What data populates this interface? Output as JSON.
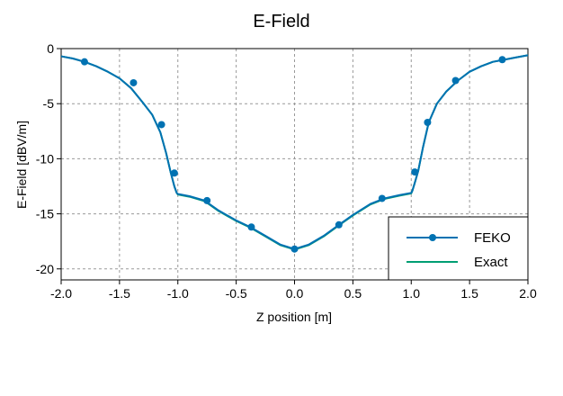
{
  "chart_data": {
    "type": "line",
    "title": "E-Field",
    "xlabel": "Z position [m]",
    "ylabel": "E-Field [dBV/m]",
    "xlim": [
      -2.0,
      2.0
    ],
    "ylim": [
      -21,
      0
    ],
    "xticks": [
      "-2.0",
      "-1.5",
      "-1.0",
      "-0.5",
      "0.0",
      "0.5",
      "1.0",
      "1.5",
      "2.0"
    ],
    "yticks": [
      "0",
      "-5",
      "-10",
      "-15",
      "-20"
    ],
    "grid": true,
    "legend_position": "bottom-right",
    "series": [
      {
        "name": "FEKO",
        "color": "#0072b2",
        "markers": true,
        "x": [
          -2.0,
          -1.9,
          -1.8,
          -1.7,
          -1.6,
          -1.5,
          -1.4,
          -1.3,
          -1.22,
          -1.15,
          -1.1,
          -1.06,
          -1.03,
          -1.01,
          -1.0,
          -0.9,
          -0.77,
          -0.65,
          -0.5,
          -0.38,
          -0.25,
          -0.12,
          0.0,
          0.12,
          0.25,
          0.38,
          0.5,
          0.65,
          0.77,
          0.9,
          1.0,
          1.01,
          1.03,
          1.06,
          1.1,
          1.15,
          1.22,
          1.3,
          1.4,
          1.5,
          1.6,
          1.7,
          1.8,
          1.9,
          2.0
        ],
        "y": [
          -0.7,
          -0.9,
          -1.2,
          -1.6,
          -2.1,
          -2.7,
          -3.6,
          -4.9,
          -6.0,
          -7.6,
          -9.5,
          -11.3,
          -12.5,
          -13.1,
          -13.2,
          -13.4,
          -13.8,
          -14.7,
          -15.6,
          -16.2,
          -17.0,
          -17.8,
          -18.2,
          -17.8,
          -17.0,
          -16.0,
          -15.1,
          -14.1,
          -13.6,
          -13.3,
          -13.1,
          -12.9,
          -12.2,
          -11.1,
          -9.0,
          -6.7,
          -5.0,
          -3.9,
          -2.9,
          -2.1,
          -1.6,
          -1.2,
          -1.0,
          -0.8,
          -0.6
        ],
        "marker_x": [
          -1.8,
          -1.38,
          -1.14,
          -1.03,
          -0.75,
          -0.37,
          0.0,
          0.38,
          0.75,
          1.03,
          1.14,
          1.38,
          1.78
        ],
        "marker_y": [
          -1.2,
          -3.1,
          -6.9,
          -11.3,
          -13.8,
          -16.2,
          -18.2,
          -16.0,
          -13.6,
          -11.2,
          -6.7,
          -2.9,
          -1.0
        ]
      },
      {
        "name": "Exact",
        "color": "#009e73",
        "markers": false,
        "x": [
          -2.0,
          -1.9,
          -1.8,
          -1.7,
          -1.6,
          -1.5,
          -1.4,
          -1.3,
          -1.22,
          -1.15,
          -1.1,
          -1.06,
          -1.03,
          -1.01,
          -1.0,
          -0.9,
          -0.77,
          -0.65,
          -0.5,
          -0.38,
          -0.25,
          -0.12,
          0.0,
          0.12,
          0.25,
          0.38,
          0.5,
          0.65,
          0.77,
          0.9,
          1.0,
          1.01,
          1.03,
          1.06,
          1.1,
          1.15,
          1.22,
          1.3,
          1.4,
          1.5,
          1.6,
          1.7,
          1.8,
          1.9,
          2.0
        ],
        "y": [
          -0.7,
          -0.9,
          -1.2,
          -1.6,
          -2.1,
          -2.7,
          -3.6,
          -4.9,
          -6.0,
          -7.6,
          -9.5,
          -11.3,
          -12.5,
          -13.1,
          -13.25,
          -13.45,
          -13.85,
          -14.75,
          -15.65,
          -16.25,
          -17.05,
          -17.85,
          -18.25,
          -17.85,
          -17.05,
          -16.05,
          -15.15,
          -14.15,
          -13.65,
          -13.35,
          -13.15,
          -12.9,
          -12.2,
          -11.1,
          -9.0,
          -6.7,
          -5.0,
          -3.9,
          -2.9,
          -2.1,
          -1.6,
          -1.2,
          -1.0,
          -0.8,
          -0.6
        ]
      }
    ]
  }
}
